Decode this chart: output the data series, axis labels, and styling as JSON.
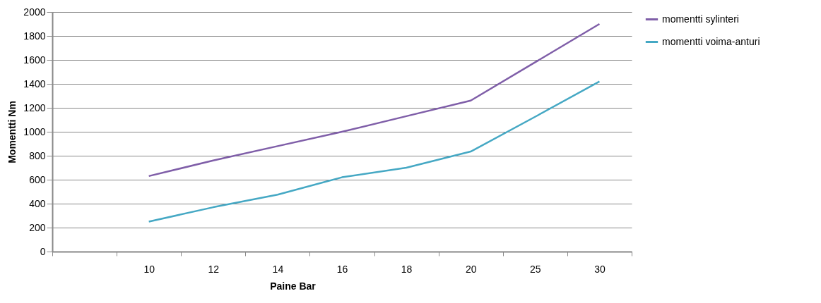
{
  "chart_data": {
    "type": "line",
    "xlabel": "Paine Bar",
    "ylabel": "Momentti Nm",
    "categories": [
      null,
      "10",
      "12",
      "14",
      "16",
      "18",
      "20",
      "25",
      "30"
    ],
    "series": [
      {
        "name": "momentti sylinteri",
        "color": "#7f5ea8",
        "values": [
          null,
          630,
          760,
          880,
          1000,
          1130,
          1260,
          1580,
          1900
        ]
      },
      {
        "name": "momentti voima-anturi",
        "color": "#45a8c4",
        "values": [
          null,
          250,
          370,
          475,
          620,
          700,
          835,
          1125,
          1420
        ]
      }
    ],
    "ylim": [
      0,
      2000
    ],
    "yticks": [
      0,
      200,
      400,
      600,
      800,
      1000,
      1200,
      1400,
      1600,
      1800,
      2000
    ],
    "grid": "y",
    "legend": "right",
    "marker": "none",
    "line_style": "solid"
  }
}
